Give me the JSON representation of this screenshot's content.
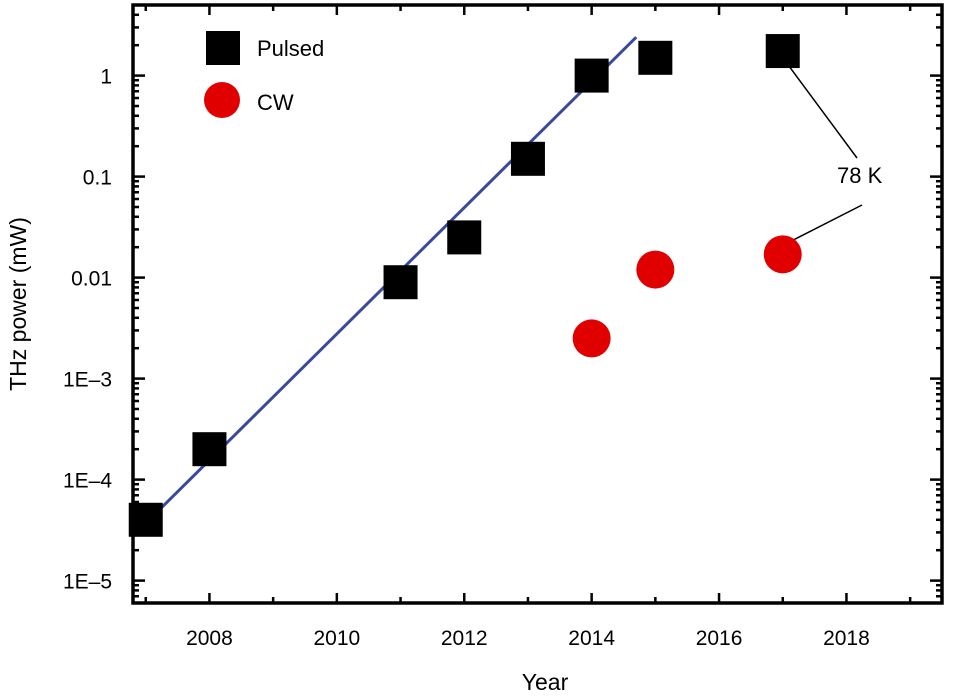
{
  "chart_data": {
    "type": "scatter",
    "xlabel": "Year",
    "ylabel": "THz power (mW)",
    "yscale": "log",
    "xlim": [
      2006.8,
      2019.5
    ],
    "ylim": [
      6e-06,
      5
    ],
    "x_ticks": [
      2008,
      2010,
      2012,
      2014,
      2016,
      2018
    ],
    "x_tick_labels": [
      "2008",
      "2010",
      "2012",
      "2014",
      "2016",
      "2018"
    ],
    "y_ticks": [
      1e-05,
      0.0001,
      0.001,
      0.01,
      0.1,
      1
    ],
    "y_tick_labels": [
      "1E–5",
      "1E–4",
      "1E–3",
      "0.01",
      "0.1",
      "1"
    ],
    "grid": false,
    "legend_position": "top-left",
    "series": [
      {
        "name": "Pulsed",
        "marker": "square",
        "color": "#000000",
        "x": [
          2007,
          2008,
          2011,
          2012,
          2013,
          2014,
          2015,
          2017
        ],
        "y": [
          4e-05,
          0.0002,
          0.009,
          0.025,
          0.15,
          1.0,
          1.5,
          1.75
        ]
      },
      {
        "name": "CW",
        "marker": "circle",
        "color": "#e00000",
        "x": [
          2014,
          2015,
          2017
        ],
        "y": [
          0.0025,
          0.012,
          0.017
        ]
      }
    ],
    "fit_line": {
      "color": "#3a4a9a",
      "x": [
        2006.9,
        2014.7
      ],
      "y": [
        3.2e-05,
        2.4
      ]
    },
    "annotation": {
      "text": "78 K",
      "color": "#000000"
    }
  }
}
